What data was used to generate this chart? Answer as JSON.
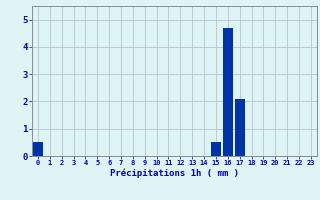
{
  "hours": [
    0,
    1,
    2,
    3,
    4,
    5,
    6,
    7,
    8,
    9,
    10,
    11,
    12,
    13,
    14,
    15,
    16,
    17,
    18,
    19,
    20,
    21,
    22,
    23
  ],
  "values": [
    0.5,
    0,
    0,
    0,
    0,
    0,
    0,
    0,
    0,
    0,
    0,
    0,
    0,
    0,
    0,
    0.5,
    4.7,
    2.1,
    0,
    0,
    0,
    0,
    0,
    0
  ],
  "bar_color": "#0033aa",
  "background_color": "#dff4f4",
  "grid_color": "#b0b8c8",
  "xlabel": "Précipitations 1h ( mm )",
  "xlabel_color": "#0000cc",
  "tick_color": "#0000cc",
  "ylim": [
    0,
    5.5
  ],
  "yticks": [
    0,
    1,
    2,
    3,
    4,
    5
  ],
  "spine_color": "#888899"
}
